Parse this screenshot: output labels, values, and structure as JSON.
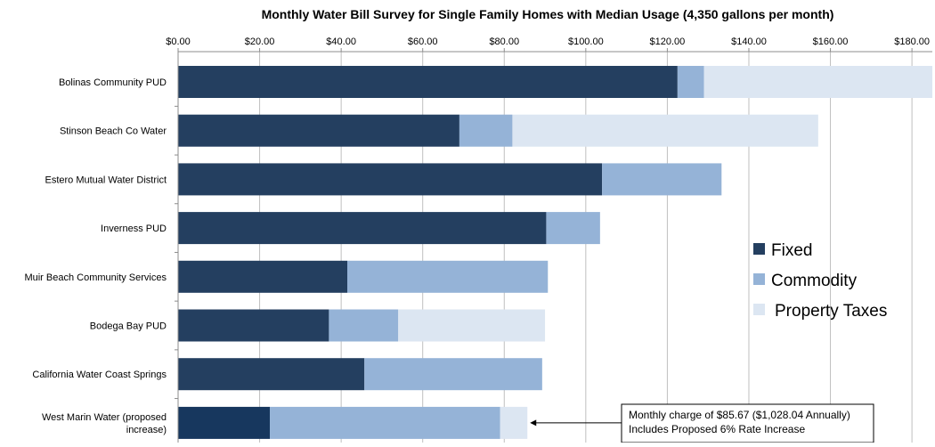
{
  "chart_data": {
    "type": "bar",
    "orientation": "horizontal",
    "stacked": true,
    "title": "Monthly Water Bill Survey for Single Family Homes with Median Usage (4,350 gallons per month)",
    "xlabel": "",
    "ylabel": "",
    "xlim": [
      0,
      185
    ],
    "x_ticks": [
      "$0.00",
      "$20.00",
      "$40.00",
      "$60.00",
      "$80.00",
      "$100.00",
      "$120.00",
      "$140.00",
      "$160.00",
      "$180.00"
    ],
    "x_tick_values": [
      0,
      20,
      40,
      60,
      80,
      100,
      120,
      140,
      160,
      180
    ],
    "grid": true,
    "axis_position": "top",
    "legend_position": "right",
    "categories": [
      [
        "Bolinas Community PUD"
      ],
      [
        "Stinson Beach Co Water"
      ],
      [
        "Estero Mutual Water District"
      ],
      [
        "Inverness PUD"
      ],
      [
        "Muir Beach Community Services"
      ],
      [
        "Bodega Bay PUD"
      ],
      [
        "California Water Coast Springs"
      ],
      [
        "West Marin Water (proposed",
        "increase)"
      ]
    ],
    "series": [
      {
        "name": "Fixed",
        "color": "#243F60",
        "values": [
          122.5,
          69,
          104,
          90.3,
          41.5,
          37,
          45.7,
          22.5
        ]
      },
      {
        "name": "Commodity",
        "color": "#95B3D7",
        "values": [
          6.5,
          13,
          29.3,
          13.2,
          49.2,
          17,
          43.6,
          56.5
        ]
      },
      {
        "name": "Property Taxes",
        "color": "#DCE6F2",
        "values": [
          56,
          75,
          0,
          0,
          0,
          36,
          0,
          6.67
        ]
      }
    ],
    "annotation": {
      "lines": [
        "Monthly charge of $85.67 ($1,028.04 Annually)",
        "Includes Proposed 6% Rate Increase"
      ],
      "target_category_index": 7,
      "target_value": 85.67
    }
  }
}
